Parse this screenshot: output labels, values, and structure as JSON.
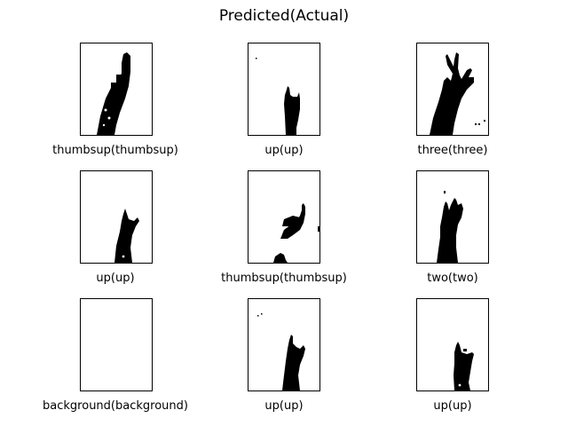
{
  "figure": {
    "title": "Predicted(Actual)"
  },
  "panels": [
    {
      "label": "thumbsup(thumbsup)",
      "predicted": "thumbsup",
      "actual": "thumbsup",
      "shape": "thumbsup"
    },
    {
      "label": "up(up)",
      "predicted": "up",
      "actual": "up",
      "shape": "up"
    },
    {
      "label": "three(three)",
      "predicted": "three",
      "actual": "three",
      "shape": "three"
    },
    {
      "label": "up(up)",
      "predicted": "up",
      "actual": "up",
      "shape": "up"
    },
    {
      "label": "thumbsup(thumbsup)",
      "predicted": "thumbsup",
      "actual": "thumbsup",
      "shape": "thumbsup-side"
    },
    {
      "label": "two(two)",
      "predicted": "two",
      "actual": "two",
      "shape": "two"
    },
    {
      "label": "background(background)",
      "predicted": "background",
      "actual": "background",
      "shape": "background"
    },
    {
      "label": "up(up)",
      "predicted": "up",
      "actual": "up",
      "shape": "up"
    },
    {
      "label": "up(up)",
      "predicted": "up",
      "actual": "up",
      "shape": "up"
    }
  ]
}
